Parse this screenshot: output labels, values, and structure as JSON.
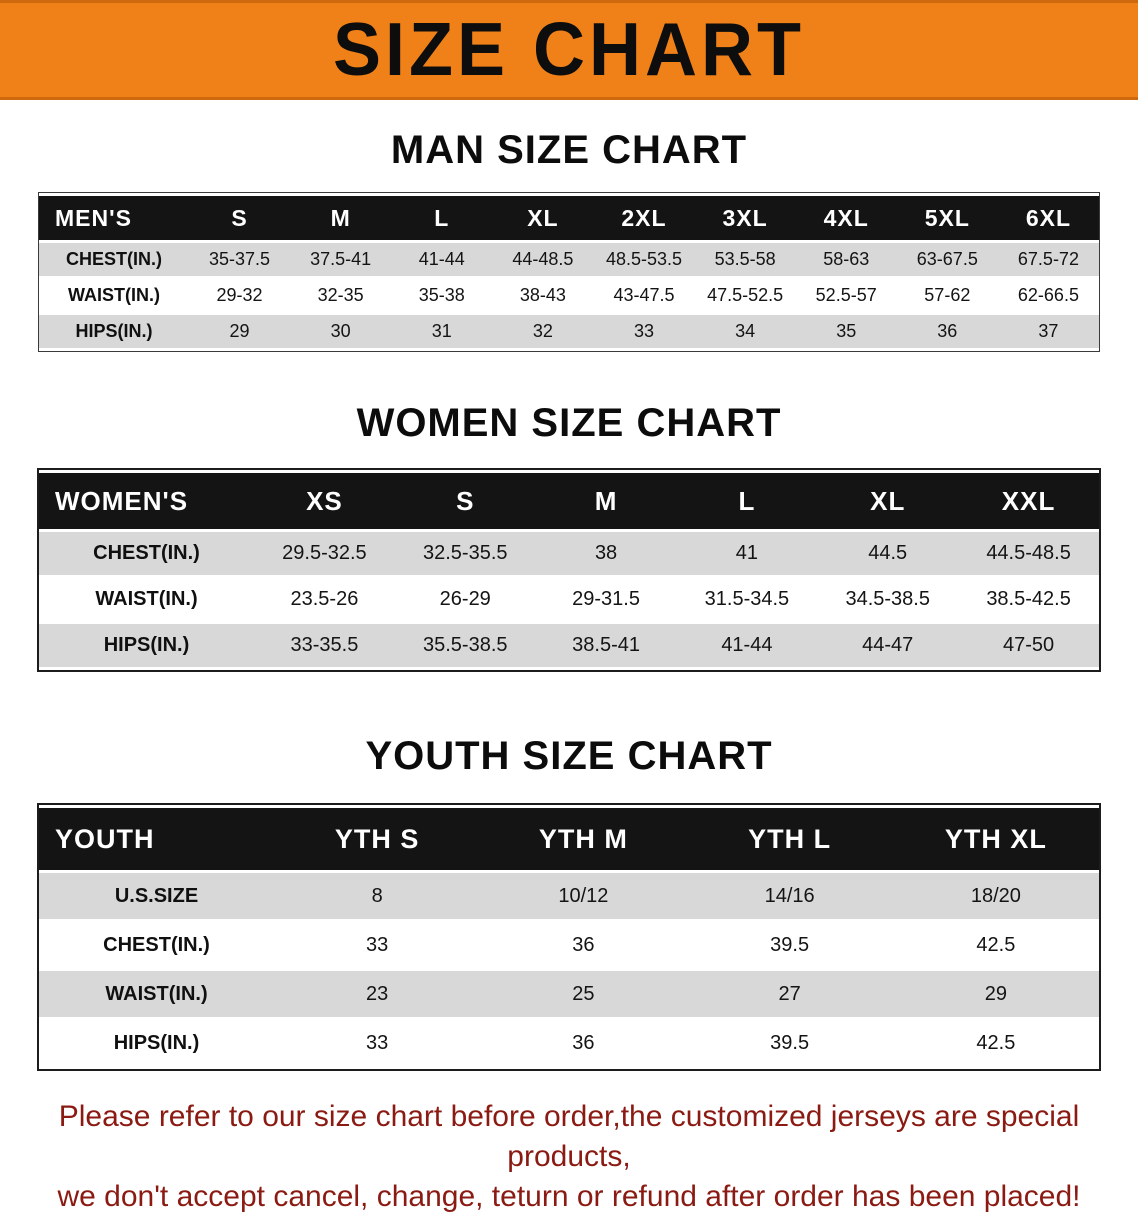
{
  "banner": {
    "title": "SIZE CHART",
    "bg_color": "#f08119",
    "text_color": "#0d0d0d"
  },
  "sections": [
    {
      "heading": "MAN SIZE CHART",
      "table": {
        "header": [
          "MEN'S",
          "S",
          "M",
          "L",
          "XL",
          "2XL",
          "3XL",
          "4XL",
          "5XL",
          "6XL"
        ],
        "rows": [
          [
            "CHEST(IN.)",
            "35-37.5",
            "37.5-41",
            "41-44",
            "44-48.5",
            "48.5-53.5",
            "53.5-58",
            "58-63",
            "63-67.5",
            "67.5-72"
          ],
          [
            "WAIST(IN.)",
            "29-32",
            "32-35",
            "35-38",
            "38-43",
            "43-47.5",
            "47.5-52.5",
            "52.5-57",
            "57-62",
            "62-66.5"
          ],
          [
            "HIPS(IN.)",
            "29",
            "30",
            "31",
            "32",
            "33",
            "34",
            "35",
            "36",
            "37"
          ]
        ]
      }
    },
    {
      "heading": "WOMEN SIZE CHART",
      "table": {
        "header": [
          "WOMEN'S",
          "XS",
          "S",
          "M",
          "L",
          "XL",
          "XXL"
        ],
        "rows": [
          [
            "CHEST(IN.)",
            "29.5-32.5",
            "32.5-35.5",
            "38",
            "41",
            "44.5",
            "44.5-48.5"
          ],
          [
            "WAIST(IN.)",
            "23.5-26",
            "26-29",
            "29-31.5",
            "31.5-34.5",
            "34.5-38.5",
            "38.5-42.5"
          ],
          [
            "HIPS(IN.)",
            "33-35.5",
            "35.5-38.5",
            "38.5-41",
            "41-44",
            "44-47",
            "47-50"
          ]
        ]
      }
    },
    {
      "heading": "YOUTH SIZE CHART",
      "table": {
        "header": [
          "YOUTH",
          "YTH S",
          "YTH M",
          "YTH L",
          "YTH XL"
        ],
        "rows": [
          [
            "U.S.SIZE",
            "8",
            "10/12",
            "14/16",
            "18/20"
          ],
          [
            "CHEST(IN.)",
            "33",
            "36",
            "39.5",
            "42.5"
          ],
          [
            "WAIST(IN.)",
            "23",
            "25",
            "27",
            "29"
          ],
          [
            "HIPS(IN.)",
            "33",
            "36",
            "39.5",
            "42.5"
          ]
        ]
      }
    }
  ],
  "footer": {
    "lines": [
      "Please refer to our size chart before order,the customized jerseys are special products,",
      "we don't accept cancel, change, teturn or refund after order has been placed!"
    ],
    "text_color": "#8a1a12"
  }
}
